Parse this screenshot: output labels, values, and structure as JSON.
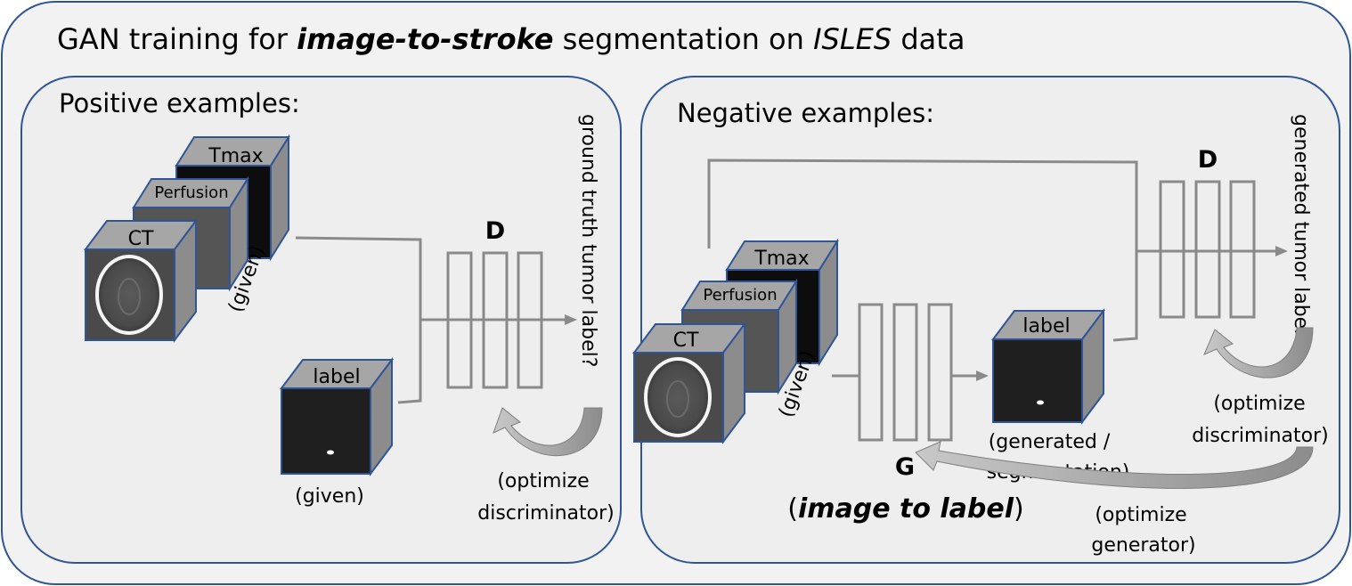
{
  "title": {
    "part1": "GAN training for ",
    "part2": "image-to-stroke",
    "part3": " segmentation on ",
    "part4": "ISLES",
    "part5": " data"
  },
  "positive": {
    "heading": "Positive examples:",
    "cube_tmax": "Tmax",
    "cube_perfusion": "Perfusion",
    "cube_ct": "CT",
    "given_rotated": "(given)",
    "cube_label": "label",
    "label_given": "(given)",
    "discriminator": "D",
    "output_question": "ground truth tumor label?",
    "optimize_line1": "(optimize",
    "optimize_line2": "discriminator)"
  },
  "negative": {
    "heading": "Negative examples:",
    "cube_tmax": "Tmax",
    "cube_perfusion": "Perfusion",
    "cube_ct": "CT",
    "given_rotated": "(given)",
    "cube_label": "label",
    "generated_line1": "(generated /",
    "generated_line2": "segmentation)",
    "generator": "G",
    "generator_caption_open": "(",
    "generator_caption_bold": "image to label",
    "generator_caption_close": ")",
    "discriminator": "D",
    "output_question": "generated tumor label?",
    "optimize_d_line1": "(optimize",
    "optimize_d_line2": "discriminator)",
    "optimize_g_line1": "(optimize",
    "optimize_g_line2": "generator)"
  },
  "colors": {
    "panel_fill": "#eeeeee",
    "outer_fill": "#f2f2f2",
    "border": "#2f5597",
    "cube_face": "#a6a6a6",
    "cube_side": "#8c8c8c",
    "line": "#8a8a8a",
    "dark": "#222222"
  }
}
